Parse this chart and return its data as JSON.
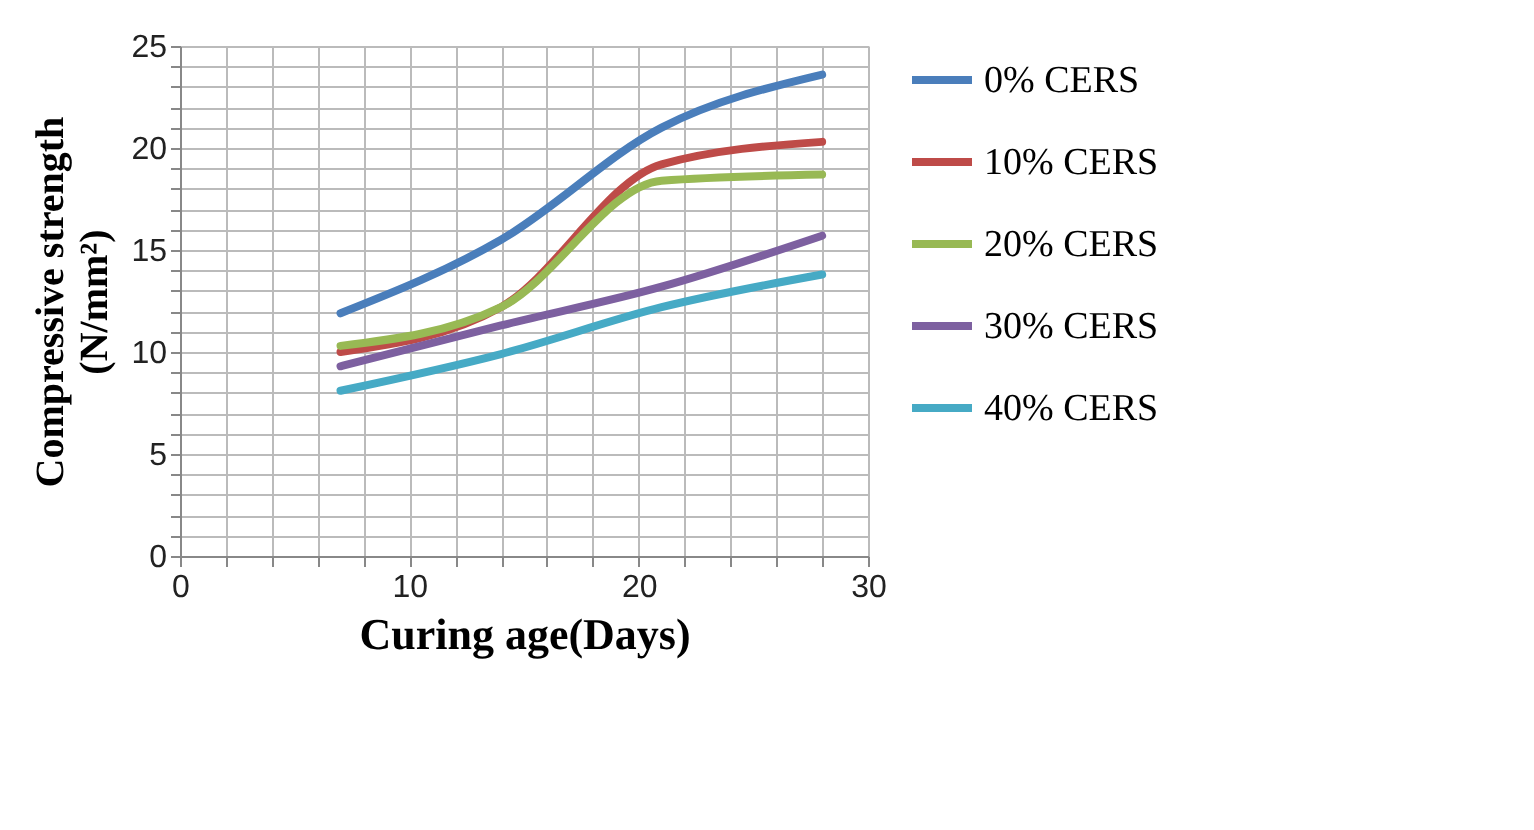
{
  "chart_data": {
    "type": "line",
    "xlabel": "Curing age(Days)",
    "ylabel": "Compressive strength (N/mm²)",
    "xlim": [
      0,
      30
    ],
    "ylim": [
      0,
      25
    ],
    "xticks": [
      0,
      {
        "value": 2,
        "label": null
      },
      {
        "value": 4,
        "label": null
      },
      {
        "value": 6,
        "label": null
      },
      {
        "value": 8,
        "label": null
      },
      10,
      {
        "value": 12,
        "label": null
      },
      {
        "value": 14,
        "label": null
      },
      {
        "value": 16,
        "label": null
      },
      {
        "value": 18,
        "label": null
      },
      20,
      {
        "value": 22,
        "label": null
      },
      {
        "value": 24,
        "label": null
      },
      {
        "value": 26,
        "label": null
      },
      {
        "value": 28,
        "label": null
      },
      30
    ],
    "yticks": [
      0,
      {
        "value": 1,
        "label": null
      },
      {
        "value": 2,
        "label": null
      },
      {
        "value": 3,
        "label": null
      },
      {
        "value": 4,
        "label": null
      },
      5,
      {
        "value": 6,
        "label": null
      },
      {
        "value": 7,
        "label": null
      },
      {
        "value": 8,
        "label": null
      },
      {
        "value": 9,
        "label": null
      },
      10,
      {
        "value": 11,
        "label": null
      },
      {
        "value": 12,
        "label": null
      },
      {
        "value": 13,
        "label": null
      },
      {
        "value": 14,
        "label": null
      },
      15,
      {
        "value": 16,
        "label": null
      },
      {
        "value": 17,
        "label": null
      },
      {
        "value": 18,
        "label": null
      },
      {
        "value": 19,
        "label": null
      },
      20,
      {
        "value": 21,
        "label": null
      },
      {
        "value": 22,
        "label": null
      },
      {
        "value": 23,
        "label": null
      },
      {
        "value": 24,
        "label": null
      },
      25
    ],
    "x": [
      7,
      14,
      21,
      28
    ],
    "series": [
      {
        "name": "0%  CERS",
        "color": "#4a7ebb",
        "values": [
          11.9,
          15.5,
          21.0,
          23.6
        ]
      },
      {
        "name": "10% CERS",
        "color": "#be4b48",
        "values": [
          10.0,
          12.2,
          19.2,
          20.3
        ]
      },
      {
        "name": "20% CERS",
        "color": "#98b954",
        "values": [
          10.3,
          12.2,
          18.4,
          18.7
        ]
      },
      {
        "name": "30% CERS",
        "color": "#7d60a0",
        "values": [
          9.3,
          11.3,
          13.2,
          15.7
        ]
      },
      {
        "name": "40% CERS",
        "color": "#46aac5",
        "values": [
          8.1,
          9.9,
          12.2,
          13.8
        ]
      }
    ],
    "grid": true,
    "legend": "right",
    "marker": "none",
    "line_style": "solid"
  }
}
